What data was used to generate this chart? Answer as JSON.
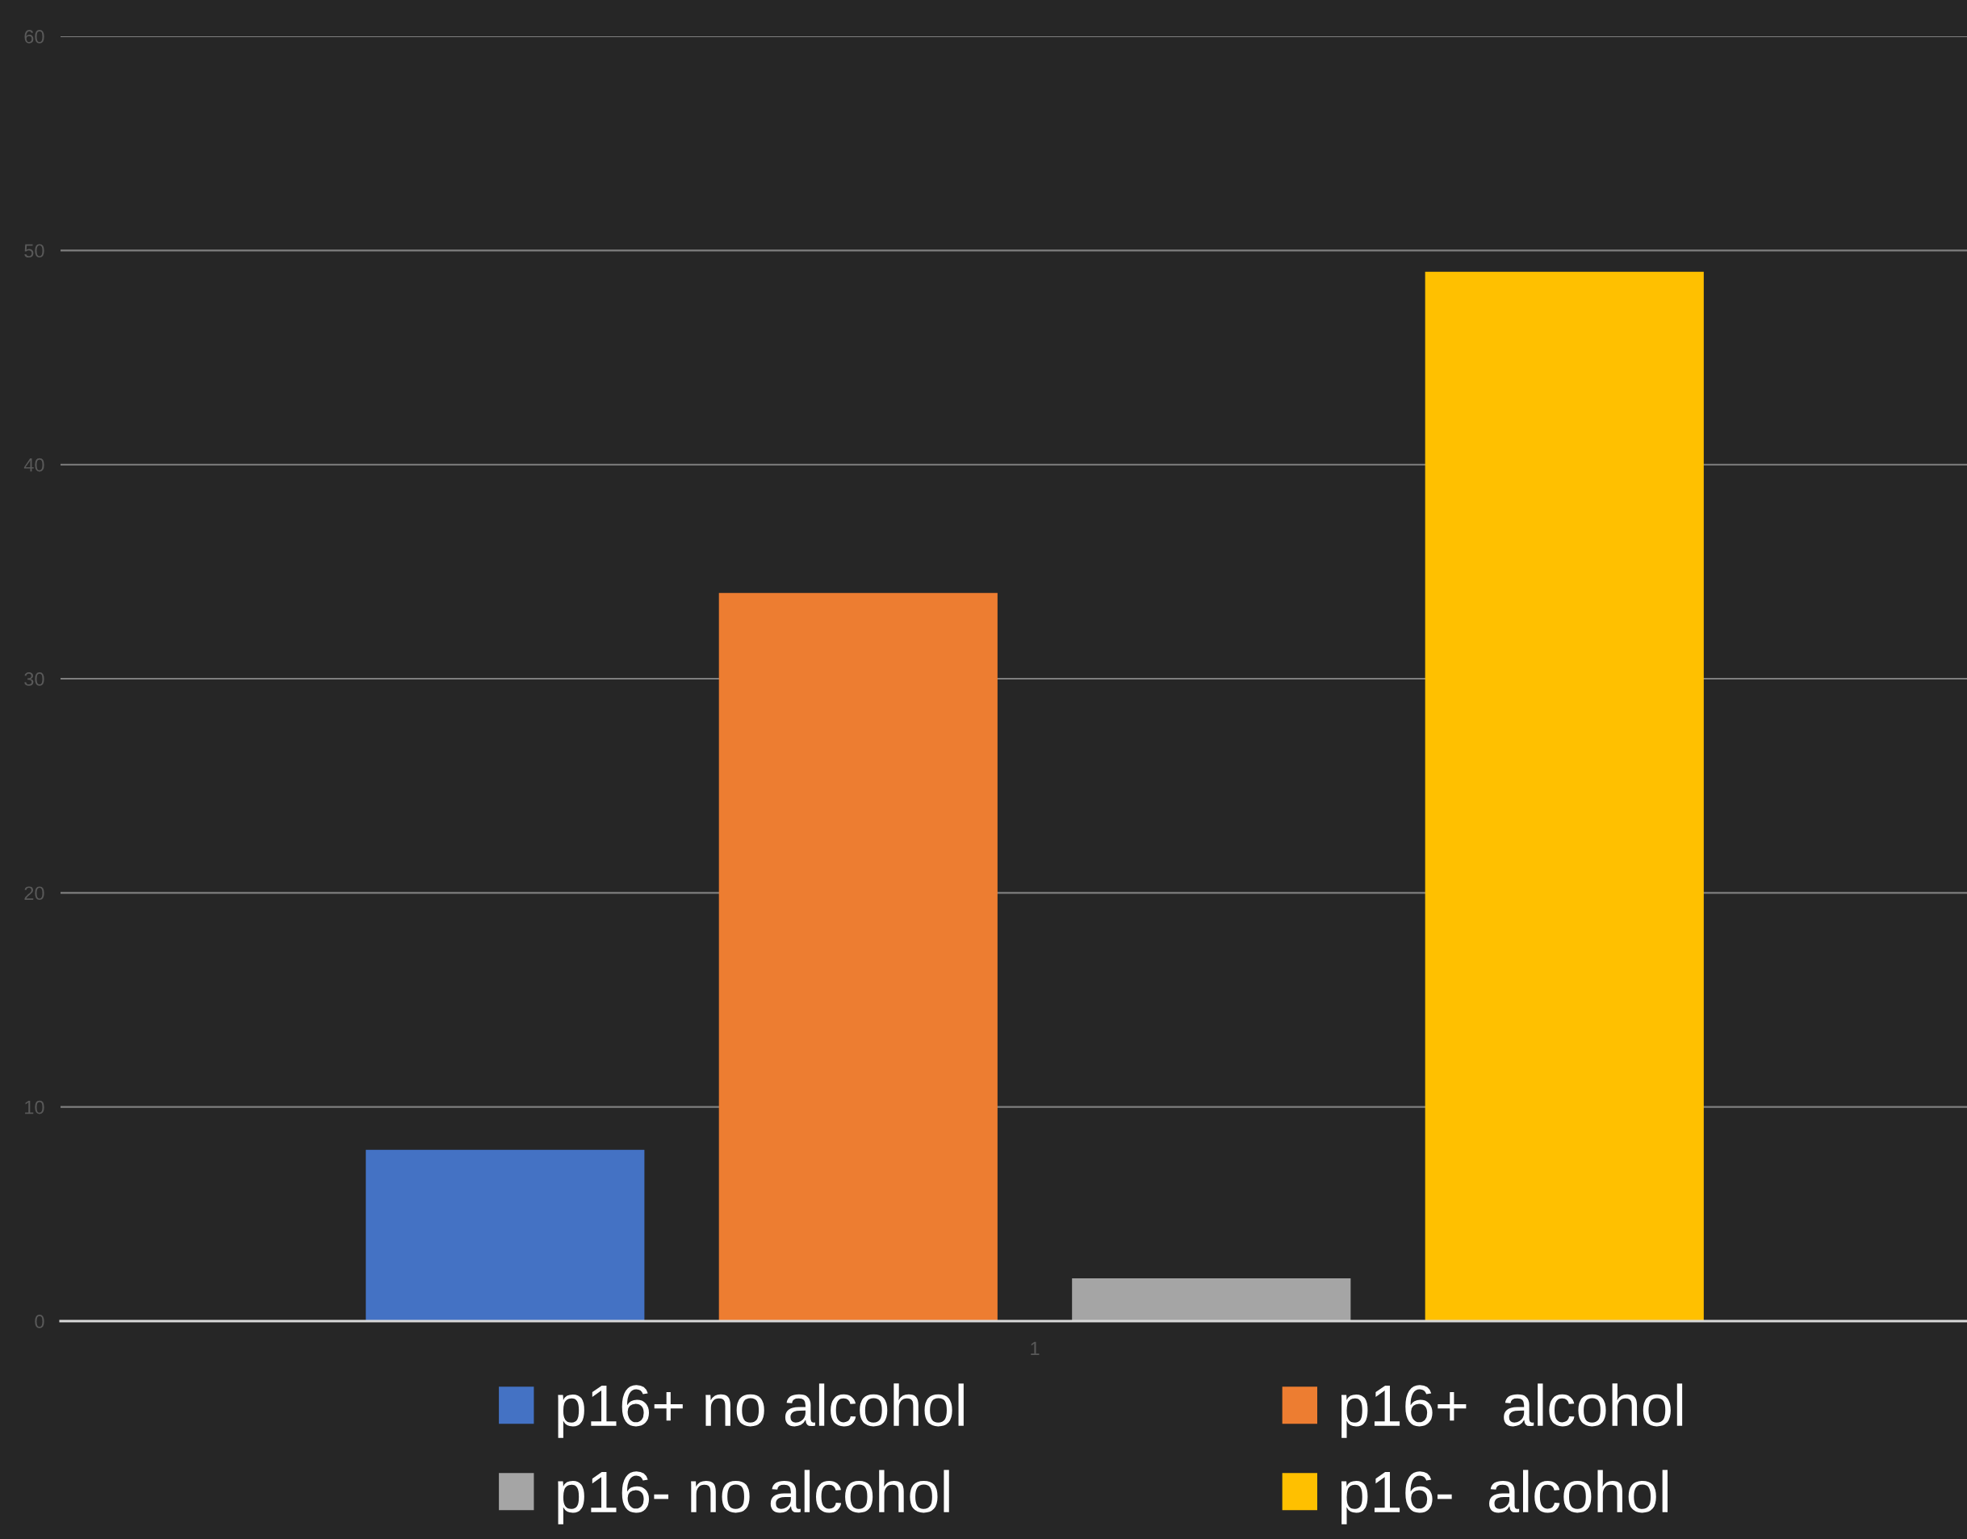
{
  "chart_data": {
    "type": "bar",
    "categories": [
      "1"
    ],
    "series": [
      {
        "name": "p16+ no alcohol",
        "color": "#4472c4",
        "values": [
          8
        ]
      },
      {
        "name": "p16+  alcohol",
        "color": "#ed7d31",
        "values": [
          34
        ]
      },
      {
        "name": "p16- no alcohol",
        "color": "#a5a5a5",
        "values": [
          2
        ]
      },
      {
        "name": "p16-  alcohol",
        "color": "#ffc000",
        "values": [
          49
        ]
      }
    ],
    "ylim": [
      0,
      60
    ],
    "yticks": [
      0,
      10,
      20,
      30,
      40,
      50,
      60
    ],
    "grid": "y",
    "legend": "bottom"
  }
}
